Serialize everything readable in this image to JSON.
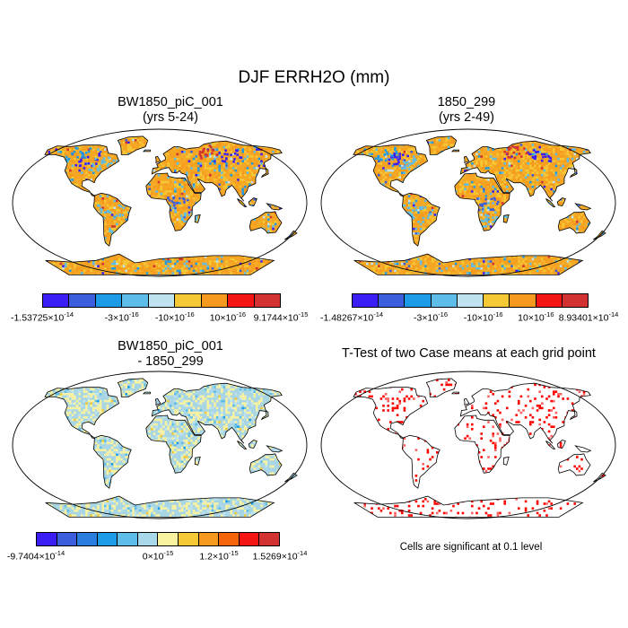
{
  "title": "DJF ERRH2O (mm)",
  "panels": [
    {
      "id": "p1",
      "title_line1": "BW1850_piC_001",
      "title_line2": "(yrs 5-24)",
      "field": "case"
    },
    {
      "id": "p2",
      "title_line1": "1850_299",
      "title_line2": "(yrs 2-49)",
      "field": "case"
    },
    {
      "id": "p3",
      "title_line1": "BW1850_piC_001",
      "title_line2": "- 1850_299",
      "field": "diff"
    },
    {
      "id": "p4",
      "title_line1": "T-Test of two Case means at each grid point",
      "title_line2": "",
      "field": "ttest"
    }
  ],
  "colorbars": {
    "cb1": {
      "colors": [
        "#3b1ef5",
        "#3c5ddc",
        "#1e9be6",
        "#5ebde8",
        "#bfe3f0",
        "#f5c836",
        "#f59a1e",
        "#f51414",
        "#d23232"
      ],
      "labels": [
        {
          "pos": 0,
          "mant": "-1.53725",
          "exp": "-14"
        },
        {
          "pos": 3,
          "mant": "-3",
          "exp": "-16"
        },
        {
          "pos": 5,
          "mant": "-10",
          "exp": "-16"
        },
        {
          "pos": 7,
          "mant": "10",
          "exp": "-16"
        },
        {
          "pos": 9,
          "mant": "9.1744",
          "exp": "-15"
        }
      ]
    },
    "cb2": {
      "colors": [
        "#3b1ef5",
        "#3c5ddc",
        "#1e9be6",
        "#5ebde8",
        "#bfe3f0",
        "#f5c836",
        "#f59a1e",
        "#f51414",
        "#d23232"
      ],
      "labels": [
        {
          "pos": 0,
          "mant": "-1.48267",
          "exp": "-14"
        },
        {
          "pos": 3,
          "mant": "-3",
          "exp": "-16"
        },
        {
          "pos": 5,
          "mant": "-10",
          "exp": "-16"
        },
        {
          "pos": 7,
          "mant": "10",
          "exp": "-16"
        },
        {
          "pos": 9,
          "mant": "8.93401",
          "exp": "-14"
        }
      ]
    },
    "cb3": {
      "colors": [
        "#3b1ef5",
        "#3c5ddc",
        "#2a7ee0",
        "#1e9be6",
        "#5ebde8",
        "#a8d8ea",
        "#f9f2a0",
        "#f5c836",
        "#f59a1e",
        "#f5640a",
        "#f51414",
        "#d23232"
      ],
      "labels": [
        {
          "pos": 0,
          "mant": "-9.7404",
          "exp": "-14"
        },
        {
          "pos": 6,
          "mant": "0",
          "exp": "-15"
        },
        {
          "pos": 9,
          "mant": "1.2",
          "exp": "-15"
        },
        {
          "pos": 12,
          "mant": "1.5269",
          "exp": "-14"
        }
      ]
    }
  },
  "note": "Cells are significant at 0.1 level",
  "colors": {
    "land_case": "#f5a623",
    "ttest_dot": "#ff0000",
    "diff_base": "#a9d6e5"
  }
}
